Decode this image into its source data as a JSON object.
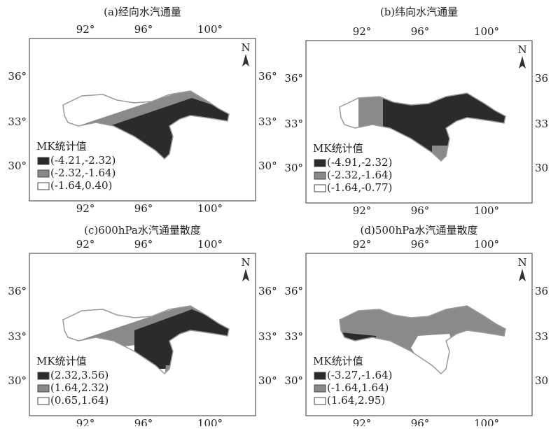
{
  "panels": [
    {
      "title": "(a)经向水汽通量",
      "north": "N",
      "top_ticks": [
        "92°",
        "96°",
        "100°"
      ],
      "bottom_ticks": [
        "92°",
        "96°",
        "100°"
      ],
      "left_ticks": [
        "36°",
        "33°",
        "30°"
      ],
      "right_ticks": [
        "36°",
        "33°",
        "30°"
      ],
      "legend": {
        "title": "MK统计值",
        "items": [
          "(-4.21,-2.32)",
          "(-2.32,-1.64)",
          "(-1.64,0.40)"
        ]
      }
    },
    {
      "title": "(b)纬向水汽通量",
      "north": "N",
      "top_ticks": [
        "92°",
        "96°",
        "100°"
      ],
      "bottom_ticks": [
        "92°",
        "96°",
        "100°"
      ],
      "left_ticks": [
        "36°",
        "33°",
        "30°"
      ],
      "right_ticks": [
        "36",
        "33",
        "30"
      ],
      "legend": {
        "title": "MK统计值",
        "items": [
          "(-4.91,-2.32)",
          "(-2.32,-1.64)",
          "(-1.64,-0.77)"
        ]
      }
    },
    {
      "title": "(c)600hPa水汽通量散度",
      "north": "N",
      "top_ticks": [
        "92°",
        "96°",
        "100°"
      ],
      "bottom_ticks": [
        "92°",
        "96°",
        "100°"
      ],
      "left_ticks": [
        "36°",
        "33°",
        "30°"
      ],
      "right_ticks": [
        "36°",
        "33°",
        "30°"
      ],
      "legend": {
        "title": "MK统计值",
        "items": [
          "(2.32,3.56)",
          "(1.64,2.32)",
          "(0.65,1.64)"
        ]
      }
    },
    {
      "title": "(d)500hPa水汽通量散度",
      "north": "N",
      "top_ticks": [
        "92°",
        "96°",
        "100°"
      ],
      "bottom_ticks": [
        "92°",
        "96°",
        "100°"
      ],
      "left_ticks": [
        "36°",
        "33°",
        "30°"
      ],
      "right_ticks": [
        "36",
        "33",
        "30"
      ],
      "legend": {
        "title": "MK统计值",
        "items": [
          "(-3.27,-1.64)",
          "(-1.64,1.64)",
          "(1.64,2.95)"
        ]
      }
    }
  ]
}
